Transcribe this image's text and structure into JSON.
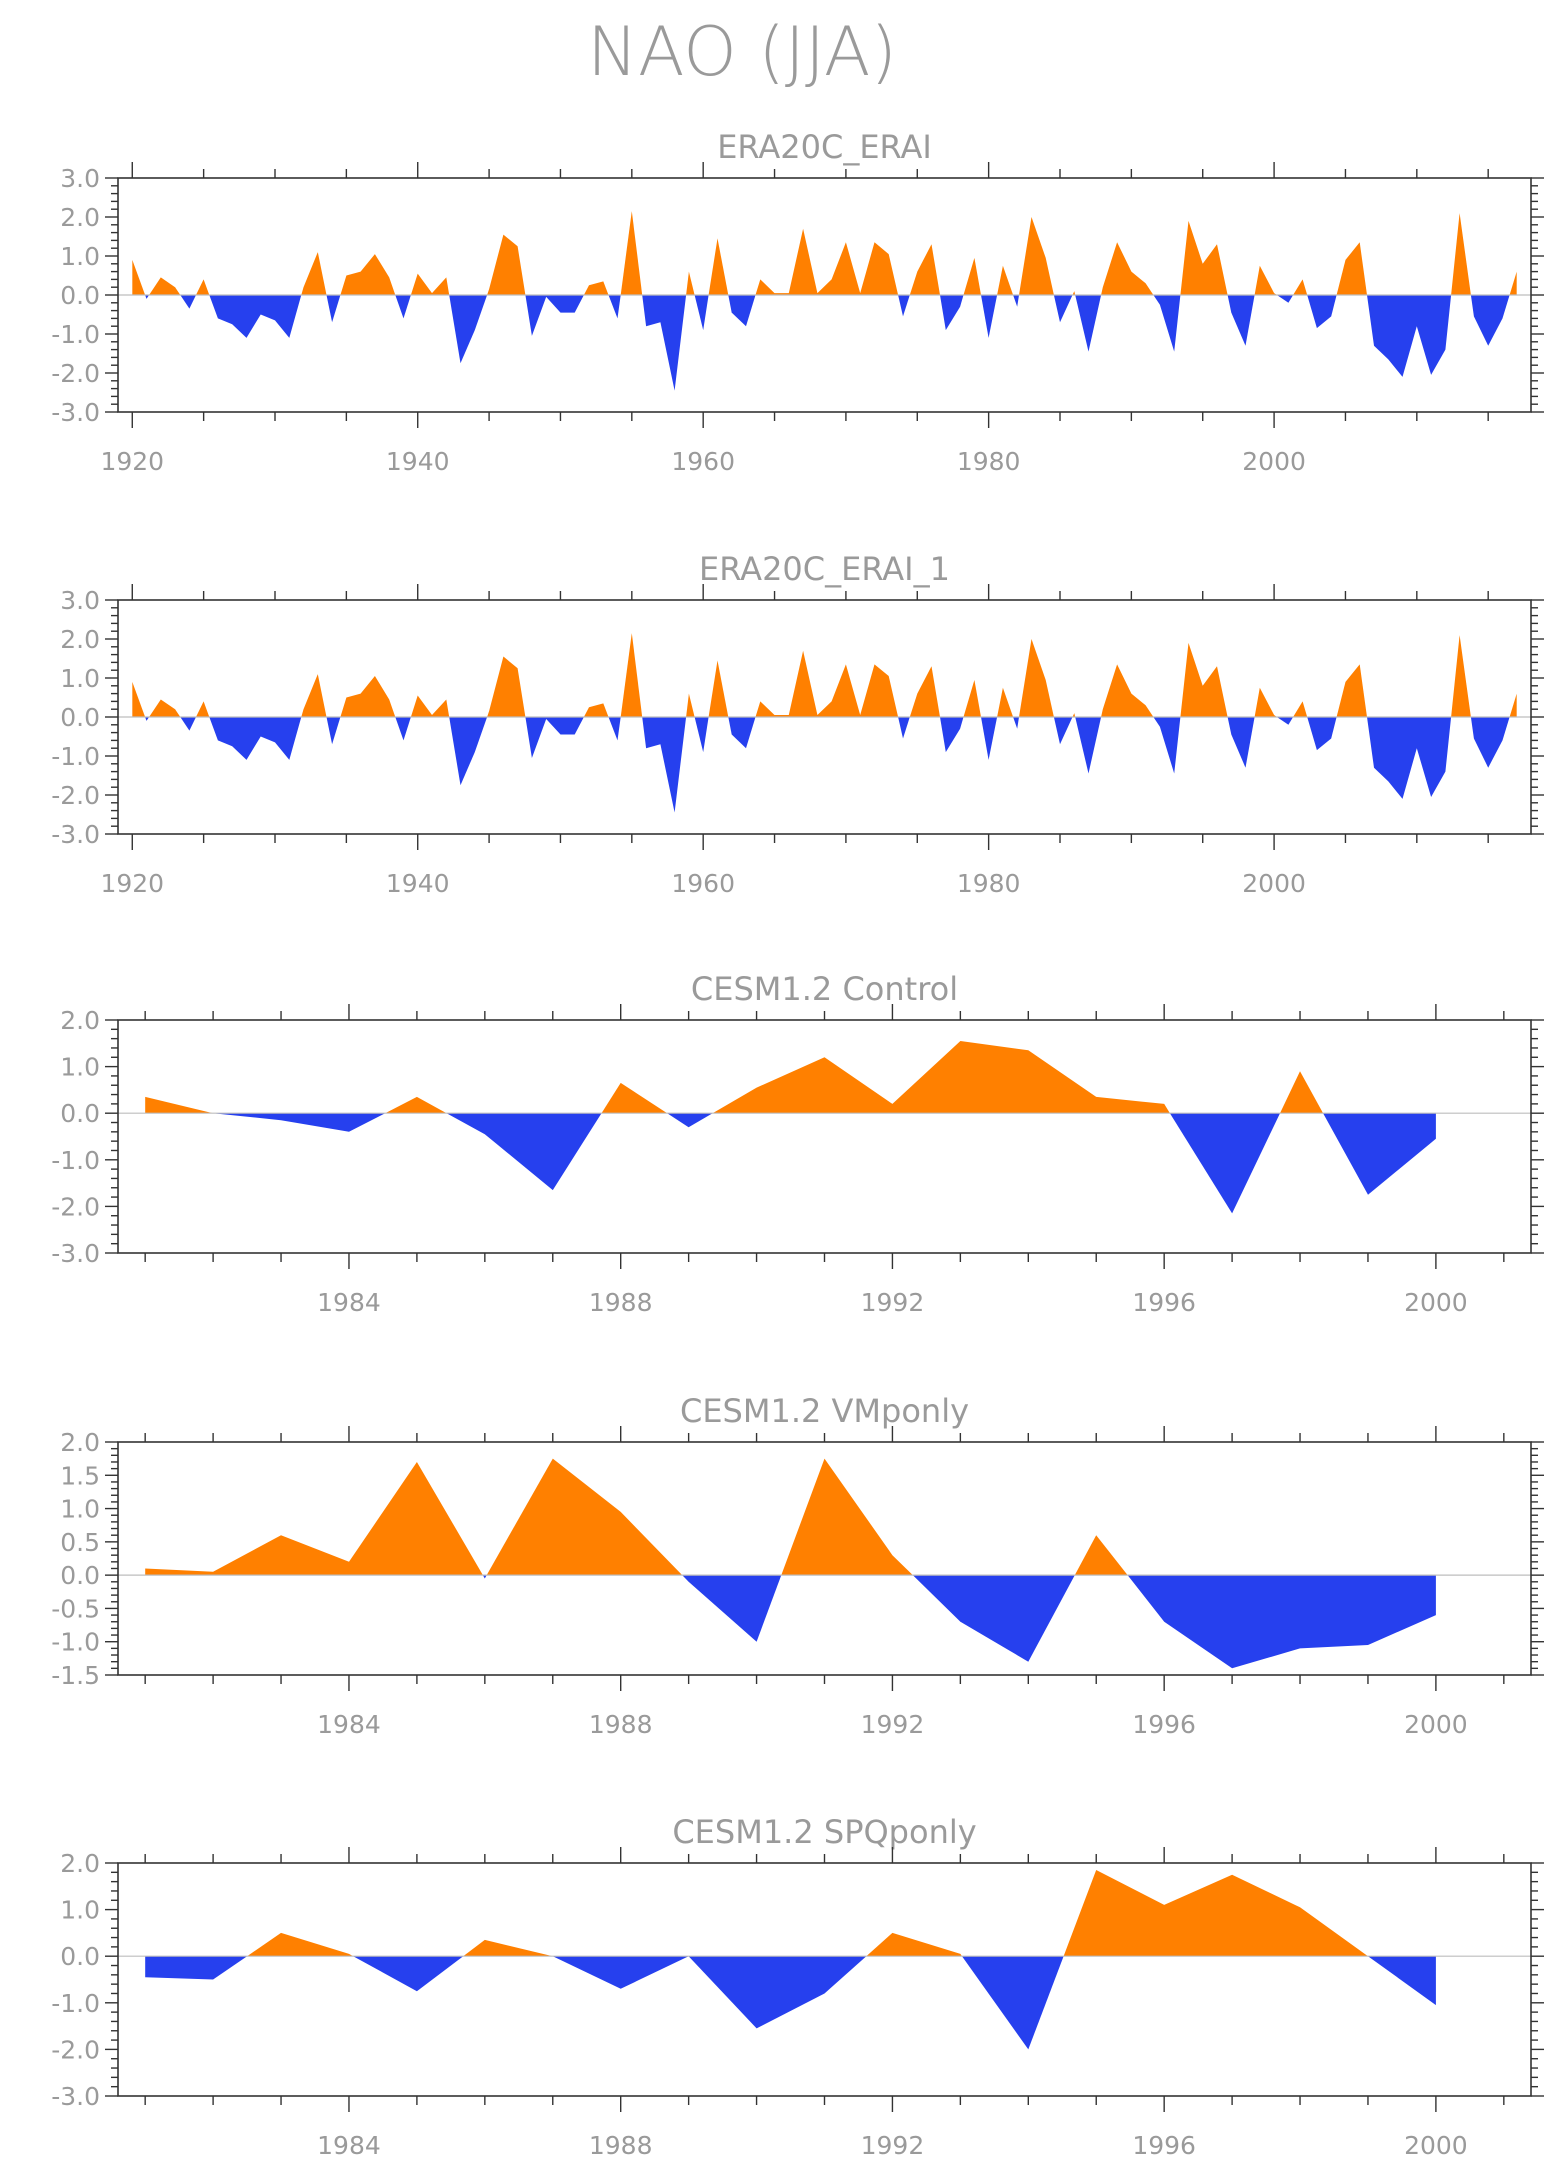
{
  "title": "NAO (JJA)",
  "colors": {
    "positive": "#ff8000",
    "negative": "#2640ee"
  },
  "chart_data": [
    {
      "type": "area",
      "title": "ERA20C_ERAI",
      "xlim": [
        1919,
        2018
      ],
      "ylim": [
        -3,
        3
      ],
      "yticks": [
        "3.0",
        "2.0",
        "1.0",
        "0.0",
        "-1.0",
        "-2.0",
        "-3.0"
      ],
      "ytick_values": [
        3,
        2,
        1,
        0,
        -1,
        -2,
        -3
      ],
      "xticks": [
        "1920",
        "1940",
        "1960",
        "1980",
        "2000"
      ],
      "xtick_values": [
        1920,
        1940,
        1960,
        1980,
        2000
      ],
      "x": [
        1920,
        1921,
        1922,
        1923,
        1924,
        1925,
        1926,
        1927,
        1928,
        1929,
        1930,
        1931,
        1932,
        1933,
        1934,
        1935,
        1936,
        1937,
        1938,
        1939,
        1940,
        1941,
        1942,
        1943,
        1944,
        1945,
        1946,
        1947,
        1948,
        1949,
        1950,
        1951,
        1952,
        1953,
        1954,
        1955,
        1956,
        1957,
        1958,
        1959,
        1960,
        1961,
        1962,
        1963,
        1964,
        1965,
        1966,
        1967,
        1968,
        1969,
        1970,
        1971,
        1972,
        1973,
        1974,
        1975,
        1976,
        1977,
        1978,
        1979,
        1980,
        1981,
        1982,
        1983,
        1984,
        1985,
        1986,
        1987,
        1988,
        1989,
        1990,
        1991,
        1992,
        1993,
        1994,
        1995,
        1996,
        1997,
        1998,
        1999,
        2000,
        2001,
        2002,
        2003,
        2004,
        2005,
        2006,
        2007,
        2008,
        2009,
        2010,
        2011,
        2012,
        2013,
        2014,
        2015,
        2016,
        2017
      ],
      "values": [
        0.9,
        -0.1,
        0.45,
        0.2,
        -0.35,
        0.4,
        -0.6,
        -0.75,
        -1.1,
        -0.5,
        -0.65,
        -1.1,
        0.2,
        1.1,
        -0.7,
        0.5,
        0.6,
        1.05,
        0.45,
        -0.6,
        0.55,
        0.05,
        0.45,
        -1.75,
        -0.9,
        0.15,
        1.55,
        1.25,
        -1.05,
        -0.05,
        -0.45,
        -0.45,
        0.25,
        0.35,
        -0.6,
        2.15,
        -0.8,
        -0.7,
        -2.45,
        0.6,
        -0.9,
        1.45,
        -0.45,
        -0.8,
        0.4,
        0.05,
        0.05,
        1.7,
        0.05,
        0.4,
        1.35,
        0.05,
        1.35,
        1.05,
        -0.55,
        0.6,
        1.3,
        -0.9,
        -0.3,
        0.95,
        -1.1,
        0.75,
        -0.3,
        2.0,
        0.95,
        -0.7,
        0.1,
        -1.45,
        0.2,
        1.35,
        0.6,
        0.3,
        -0.25,
        -1.45,
        1.9,
        0.8,
        1.3,
        -0.45,
        -1.3,
        0.75,
        0.05,
        -0.2,
        0.4,
        -0.85,
        -0.55,
        0.9,
        1.35,
        -1.3,
        -1.65,
        -2.1,
        -0.8,
        -2.05,
        -1.4,
        2.1,
        -0.55,
        -1.3,
        -0.6,
        0.6
      ]
    },
    {
      "type": "area",
      "title": "ERA20C_ERAI_1",
      "xlim": [
        1919,
        2018
      ],
      "ylim": [
        -3,
        3
      ],
      "yticks": [
        "3.0",
        "2.0",
        "1.0",
        "0.0",
        "-1.0",
        "-2.0",
        "-3.0"
      ],
      "ytick_values": [
        3,
        2,
        1,
        0,
        -1,
        -2,
        -3
      ],
      "xticks": [
        "1920",
        "1940",
        "1960",
        "1980",
        "2000"
      ],
      "xtick_values": [
        1920,
        1940,
        1960,
        1980,
        2000
      ],
      "x": [
        1920,
        1921,
        1922,
        1923,
        1924,
        1925,
        1926,
        1927,
        1928,
        1929,
        1930,
        1931,
        1932,
        1933,
        1934,
        1935,
        1936,
        1937,
        1938,
        1939,
        1940,
        1941,
        1942,
        1943,
        1944,
        1945,
        1946,
        1947,
        1948,
        1949,
        1950,
        1951,
        1952,
        1953,
        1954,
        1955,
        1956,
        1957,
        1958,
        1959,
        1960,
        1961,
        1962,
        1963,
        1964,
        1965,
        1966,
        1967,
        1968,
        1969,
        1970,
        1971,
        1972,
        1973,
        1974,
        1975,
        1976,
        1977,
        1978,
        1979,
        1980,
        1981,
        1982,
        1983,
        1984,
        1985,
        1986,
        1987,
        1988,
        1989,
        1990,
        1991,
        1992,
        1993,
        1994,
        1995,
        1996,
        1997,
        1998,
        1999,
        2000,
        2001,
        2002,
        2003,
        2004,
        2005,
        2006,
        2007,
        2008,
        2009,
        2010,
        2011,
        2012,
        2013,
        2014,
        2015,
        2016,
        2017
      ],
      "values": [
        0.9,
        -0.1,
        0.45,
        0.2,
        -0.35,
        0.4,
        -0.6,
        -0.75,
        -1.1,
        -0.5,
        -0.65,
        -1.1,
        0.2,
        1.1,
        -0.7,
        0.5,
        0.6,
        1.05,
        0.45,
        -0.6,
        0.55,
        0.05,
        0.45,
        -1.75,
        -0.9,
        0.15,
        1.55,
        1.25,
        -1.05,
        -0.05,
        -0.45,
        -0.45,
        0.25,
        0.35,
        -0.6,
        2.15,
        -0.8,
        -0.7,
        -2.45,
        0.6,
        -0.9,
        1.45,
        -0.45,
        -0.8,
        0.4,
        0.05,
        0.05,
        1.7,
        0.05,
        0.4,
        1.35,
        0.05,
        1.35,
        1.05,
        -0.55,
        0.6,
        1.3,
        -0.9,
        -0.3,
        0.95,
        -1.1,
        0.75,
        -0.3,
        2.0,
        0.95,
        -0.7,
        0.1,
        -1.45,
        0.2,
        1.35,
        0.6,
        0.3,
        -0.25,
        -1.45,
        1.9,
        0.8,
        1.3,
        -0.45,
        -1.3,
        0.75,
        0.05,
        -0.2,
        0.4,
        -0.85,
        -0.55,
        0.9,
        1.35,
        -1.3,
        -1.65,
        -2.1,
        -0.8,
        -2.05,
        -1.4,
        2.1,
        -0.55,
        -1.3,
        -0.6,
        0.6
      ]
    },
    {
      "type": "area",
      "title": "CESM1.2 Control",
      "xlim": [
        1980.6,
        2001.4
      ],
      "ylim": [
        -3,
        2
      ],
      "yticks": [
        "2.0",
        "1.0",
        "0.0",
        "-1.0",
        "-2.0",
        "-3.0"
      ],
      "ytick_values": [
        2,
        1,
        0,
        -1,
        -2,
        -3
      ],
      "xticks": [
        "1984",
        "1988",
        "1992",
        "1996",
        "2000"
      ],
      "xtick_values": [
        1984,
        1988,
        1992,
        1996,
        2000
      ],
      "x": [
        1981,
        1982,
        1983,
        1984,
        1985,
        1986,
        1987,
        1988,
        1989,
        1990,
        1991,
        1992,
        1993,
        1994,
        1995,
        1996,
        1997,
        1998,
        1999,
        2000
      ],
      "values": [
        0.35,
        0.0,
        -0.15,
        -0.4,
        0.35,
        -0.45,
        -1.65,
        0.65,
        -0.3,
        0.55,
        1.2,
        0.2,
        1.55,
        1.35,
        0.35,
        0.2,
        -2.15,
        0.9,
        -1.75,
        -0.55
      ]
    },
    {
      "type": "area",
      "title": "CESM1.2 VMponly",
      "xlim": [
        1980.6,
        2001.4
      ],
      "ylim": [
        -1.5,
        2
      ],
      "yticks": [
        "2.0",
        "1.5",
        "1.0",
        "0.5",
        "0.0",
        "-0.5",
        "-1.0",
        "-1.5"
      ],
      "ytick_values": [
        2,
        1.5,
        1,
        0.5,
        0,
        -0.5,
        -1,
        -1.5
      ],
      "xticks": [
        "1984",
        "1988",
        "1992",
        "1996",
        "2000"
      ],
      "xtick_values": [
        1984,
        1988,
        1992,
        1996,
        2000
      ],
      "x": [
        1981,
        1982,
        1983,
        1984,
        1985,
        1986,
        1987,
        1988,
        1989,
        1990,
        1991,
        1992,
        1993,
        1994,
        1995,
        1996,
        1997,
        1998,
        1999,
        2000
      ],
      "values": [
        0.1,
        0.05,
        0.6,
        0.2,
        1.7,
        -0.05,
        1.75,
        0.95,
        -0.1,
        -1.0,
        1.75,
        0.3,
        -0.7,
        -1.3,
        0.6,
        -0.7,
        -1.4,
        -1.1,
        -1.05,
        -0.6
      ]
    },
    {
      "type": "area",
      "title": "CESM1.2 SPQponly",
      "xlim": [
        1980.6,
        2001.4
      ],
      "ylim": [
        -3,
        2
      ],
      "yticks": [
        "2.0",
        "1.0",
        "0.0",
        "-1.0",
        "-2.0",
        "-3.0"
      ],
      "ytick_values": [
        2,
        1,
        0,
        -1,
        -2,
        -3
      ],
      "xticks": [
        "1984",
        "1988",
        "1992",
        "1996",
        "2000"
      ],
      "xtick_values": [
        1984,
        1988,
        1992,
        1996,
        2000
      ],
      "x": [
        1981,
        1982,
        1983,
        1984,
        1985,
        1986,
        1987,
        1988,
        1989,
        1990,
        1991,
        1992,
        1993,
        1994,
        1995,
        1996,
        1997,
        1998,
        1999,
        2000
      ],
      "values": [
        -0.45,
        -0.5,
        0.5,
        0.05,
        -0.75,
        0.35,
        0.0,
        -0.7,
        0.0,
        -1.55,
        -0.8,
        0.5,
        0.05,
        -2.0,
        1.85,
        1.1,
        1.75,
        1.05,
        0.0,
        -1.05
      ]
    }
  ]
}
